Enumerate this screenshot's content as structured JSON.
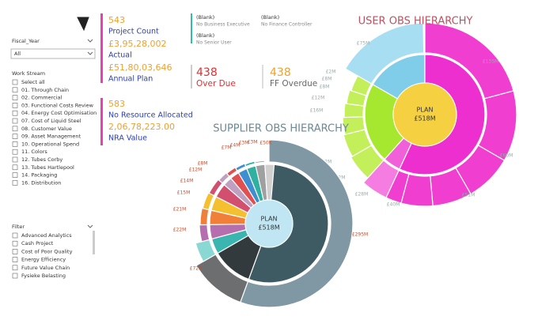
{
  "fiscal_year": {
    "label": "Fiscal_Year",
    "value": "All"
  },
  "work_stream": {
    "label": "Work Stream",
    "items": [
      "Select all",
      "01. Through Chain",
      "02. Commercial",
      "03. Functional Costs Review",
      "04. Energy Cost Optimisation",
      "07. Cost of Liquid Steel",
      "08. Customer Value",
      "09. Asset Management",
      "10. Operational Spend",
      "11. Colors",
      "12. Tubes Corby",
      "13. Tubes Hartlepool",
      "14. Packaging",
      "16. Distribution"
    ]
  },
  "filter": {
    "label": "Filter",
    "items": [
      "Advanced Analytics",
      "Cash Project",
      "Cost of Poor Quality",
      "Energy Efficiency",
      "Future Value Chain",
      "Fysieke Belasting"
    ]
  },
  "kpi_main": [
    {
      "value": "543",
      "label": "Project Count"
    },
    {
      "value": "£3,95,28,002",
      "label": "Actual"
    },
    {
      "value": "£51,80,03,646",
      "label": "Annual Plan"
    }
  ],
  "kpi_nra": [
    {
      "value": "583",
      "label": "No Resource Allocated"
    },
    {
      "value": "2,06,78,223.00",
      "label": "NRA Value"
    }
  ],
  "blanks": [
    {
      "value": "(Blank)",
      "label": "No Business Executive"
    },
    {
      "value": "(Blank)",
      "label": "No Senior User"
    },
    {
      "value": "(Blank)",
      "label": "No Finance Controller"
    }
  ],
  "over_due": {
    "value": "438",
    "label": "Over Due"
  },
  "ff_overdue": {
    "value": "438",
    "label": "FF Overdue"
  },
  "user_obs": {
    "title": "USER OBS HIERARCHY",
    "center_label": "PLAN",
    "center_value": "£518M",
    "segment_labels": [
      "£75M",
      "£135M",
      "£60M",
      "£51M",
      "£40M",
      "£28M",
      "£2M",
      "£32M",
      "£16M",
      "£12M",
      "£8M",
      "£8M",
      "£2M"
    ]
  },
  "supplier_obs": {
    "title": "SUPPLIER OBS HIERARCHY",
    "center_label": "PLAN",
    "center_value": "£518M",
    "segment_labels": [
      "£295M",
      "£72M",
      "£22M",
      "£21M",
      "£15M",
      "£14M",
      "£12M",
      "£8M",
      "£7M",
      "£4M",
      "£3M",
      "£3M",
      "£50K"
    ]
  }
}
